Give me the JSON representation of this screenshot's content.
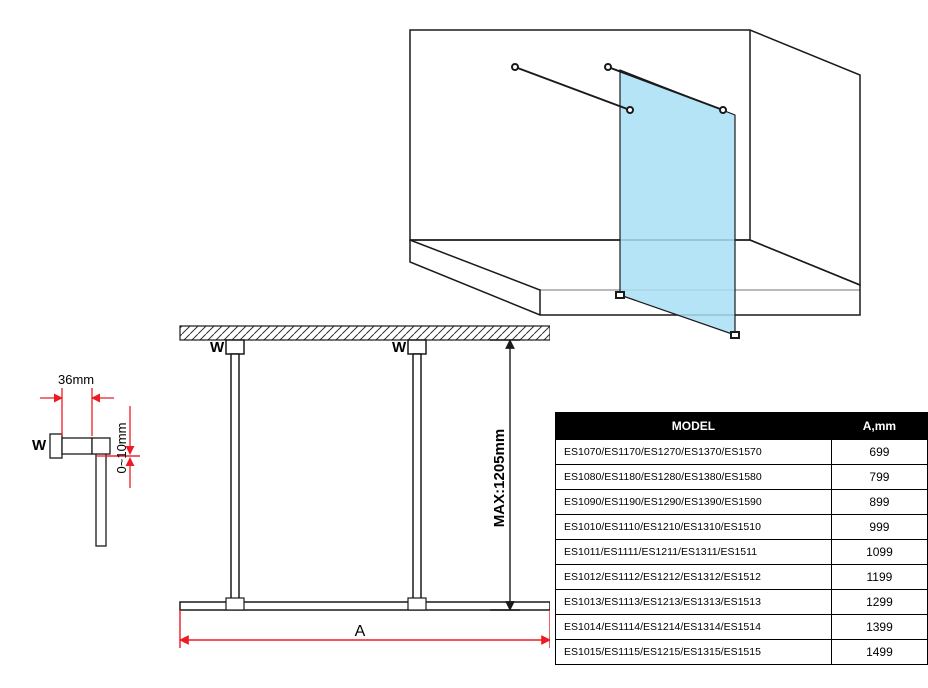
{
  "iso": {
    "panel_fill": "#a7dff5",
    "panel_stroke": "#1a1a1a",
    "wall_stroke": "#1a1a1a",
    "floor_stroke": "#1a1a1a",
    "bar_stroke": "#1a1a1a"
  },
  "plan": {
    "label_A": "A",
    "label_W": "W",
    "label_36": "36mm",
    "label_0_10": "0~10mm",
    "label_height": "MAX:1205mm",
    "dim_color": "#ed1c24",
    "dim_stroke_width": 1.4,
    "line_color": "#1a1a1a",
    "hatch_color": "#333333",
    "font_size_label": 14,
    "font_size_W": 15
  },
  "table": {
    "headers": {
      "model": "MODEL",
      "a": "A,mm"
    },
    "col_widths": {
      "model": 260,
      "a": 80
    },
    "header_bg": "#000000",
    "header_fg": "#ffffff",
    "border_color": "#000000",
    "font_size_header": 12,
    "font_size_cell": 11,
    "rows": [
      {
        "model": "ES1070/ES1170/ES1270/ES1370/ES1570",
        "a": "699"
      },
      {
        "model": "ES1080/ES1180/ES1280/ES1380/ES1580",
        "a": "799"
      },
      {
        "model": "ES1090/ES1190/ES1290/ES1390/ES1590",
        "a": "899"
      },
      {
        "model": "ES1010/ES1110/ES1210/ES1310/ES1510",
        "a": "999"
      },
      {
        "model": "ES1011/ES1111/ES1211/ES1311/ES1511",
        "a": "1099"
      },
      {
        "model": "ES1012/ES1112/ES1212/ES1312/ES1512",
        "a": "1199"
      },
      {
        "model": "ES1013/ES1113/ES1213/ES1313/ES1513",
        "a": "1299"
      },
      {
        "model": "ES1014/ES1114/ES1214/ES1314/ES1514",
        "a": "1399"
      },
      {
        "model": "ES1015/ES1115/ES1215/ES1315/ES1515",
        "a": "1499"
      }
    ]
  }
}
